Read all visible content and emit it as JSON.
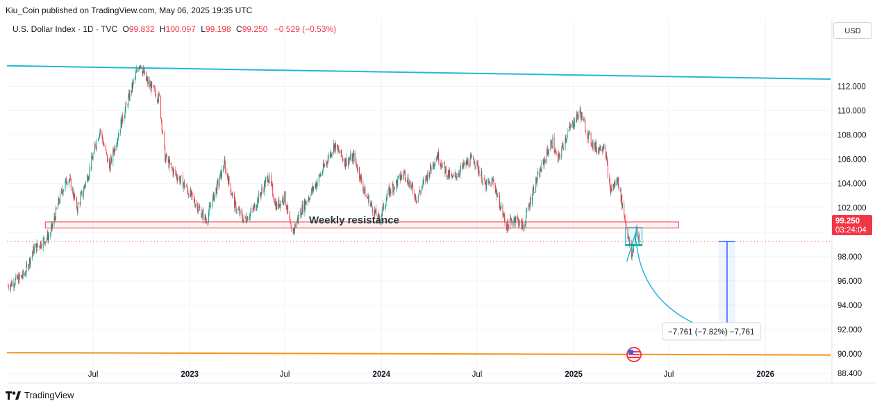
{
  "header": {
    "published": "Kiu_Coin published on TradingView.com, May 06, 2025 19:35 UTC",
    "currency_button": "USD"
  },
  "legend": {
    "symbol": "U.S. Dollar Index · 1D · TVC",
    "open_label": "O",
    "open": "99.832",
    "high_label": "H",
    "high": "100.097",
    "low_label": "L",
    "low": "99.198",
    "close_label": "C",
    "close": "99.250",
    "change": "−0.529 (−0.53%)"
  },
  "price_badge": {
    "price": "99.250",
    "countdown": "03:24:04",
    "color": "#f23645"
  },
  "annotations": {
    "resistance_label": "Weekly resistance",
    "measure_label": "−7.761 (−7.82%) −7,761"
  },
  "footer": {
    "brand": "TradingView"
  },
  "colors": {
    "up": "#089981",
    "down": "#f23645",
    "trendline": "#22b8d6",
    "support": "#f7931a",
    "resistance_box": "#f23645",
    "measure": "#2962ff"
  },
  "chart_data": {
    "type": "candlestick",
    "symbol": "U.S. Dollar Index",
    "interval": "1D",
    "y_ticks": [
      88.4,
      90,
      92,
      94,
      96,
      98,
      100,
      102,
      104,
      106,
      108,
      110,
      112
    ],
    "y_tick_labels": [
      "88.400",
      "90.000",
      "92.000",
      "94.000",
      "96.000",
      "98.000",
      "100.000",
      "102.000",
      "104.000",
      "106.000",
      "108.000",
      "110.000",
      "112.000"
    ],
    "x_ticks": [
      "2022-07-01",
      "2023-01-01",
      "2023-07-01",
      "2024-01-01",
      "2024-07-01",
      "2025-01-01",
      "2025-07-01",
      "2026-01-01"
    ],
    "x_tick_labels": [
      "Jul",
      "2023",
      "Jul",
      "2024",
      "Jul",
      "2025",
      "Jul",
      "2026"
    ],
    "x_range": [
      "2022-01-18",
      "2026-05-05"
    ],
    "y_range": [
      87.6,
      115.8
    ],
    "series_path": [
      [
        "2022-01-20",
        95.6
      ],
      [
        "2022-02-20",
        96.5
      ],
      [
        "2022-03-10",
        98.6
      ],
      [
        "2022-04-10",
        99.8
      ],
      [
        "2022-05-01",
        103.2
      ],
      [
        "2022-05-15",
        104.6
      ],
      [
        "2022-06-01",
        102.0
      ],
      [
        "2022-06-20",
        104.5
      ],
      [
        "2022-07-14",
        108.5
      ],
      [
        "2022-08-01",
        105.3
      ],
      [
        "2022-08-22",
        108.8
      ],
      [
        "2022-09-28",
        114.0
      ],
      [
        "2022-10-10",
        112.5
      ],
      [
        "2022-11-04",
        111.0
      ],
      [
        "2022-11-15",
        106.2
      ],
      [
        "2022-12-01",
        105.0
      ],
      [
        "2022-12-20",
        104.0
      ],
      [
        "2023-01-15",
        102.2
      ],
      [
        "2023-02-01",
        101.0
      ],
      [
        "2023-03-08",
        105.6
      ],
      [
        "2023-03-28",
        102.2
      ],
      [
        "2023-04-14",
        101.0
      ],
      [
        "2023-05-01",
        101.8
      ],
      [
        "2023-05-31",
        104.6
      ],
      [
        "2023-06-15",
        102.1
      ],
      [
        "2023-07-01",
        103.0
      ],
      [
        "2023-07-14",
        99.8
      ],
      [
        "2023-08-01",
        101.8
      ],
      [
        "2023-09-01",
        104.2
      ],
      [
        "2023-10-03",
        107.2
      ],
      [
        "2023-10-24",
        105.8
      ],
      [
        "2023-11-10",
        106.2
      ],
      [
        "2023-12-01",
        103.2
      ],
      [
        "2023-12-27",
        101.0
      ],
      [
        "2024-01-15",
        103.3
      ],
      [
        "2024-02-14",
        104.9
      ],
      [
        "2024-03-08",
        102.8
      ],
      [
        "2024-04-16",
        106.4
      ],
      [
        "2024-05-03",
        105.0
      ],
      [
        "2024-05-15",
        104.4
      ],
      [
        "2024-06-14",
        105.8
      ],
      [
        "2024-06-26",
        106.0
      ],
      [
        "2024-07-17",
        103.8
      ],
      [
        "2024-08-01",
        104.2
      ],
      [
        "2024-08-26",
        100.5
      ],
      [
        "2024-09-12",
        101.2
      ],
      [
        "2024-09-27",
        100.4
      ],
      [
        "2024-10-15",
        103.4
      ],
      [
        "2024-11-12",
        106.6
      ],
      [
        "2024-11-22",
        107.5
      ],
      [
        "2024-12-01",
        105.8
      ],
      [
        "2024-12-20",
        108.2
      ],
      [
        "2025-01-13",
        109.9
      ],
      [
        "2025-02-01",
        107.6
      ],
      [
        "2025-02-15",
        106.8
      ],
      [
        "2025-03-01",
        107.3
      ],
      [
        "2025-03-11",
        103.4
      ],
      [
        "2025-03-26",
        104.3
      ],
      [
        "2025-04-10",
        100.8
      ],
      [
        "2025-04-21",
        98.0
      ],
      [
        "2025-05-01",
        100.2
      ],
      [
        "2025-05-06",
        99.25
      ]
    ],
    "lines": [
      {
        "kind": "trendline",
        "from": [
          "2022-01-18",
          113.7
        ],
        "to": [
          "2026-05-05",
          112.6
        ]
      },
      {
        "kind": "support",
        "from": [
          "2022-01-18",
          90.1
        ],
        "to": [
          "2026-05-05",
          89.9
        ]
      }
    ],
    "zones": [
      {
        "kind": "resistance",
        "from": "2022-04-01",
        "to": "2025-07-20",
        "low": 100.35,
        "high": 100.85
      }
    ],
    "current_price_line": 99.25,
    "projection": {
      "from": [
        "2025-04-30",
        99.25
      ],
      "to": [
        "2025-10-25",
        91.5
      ]
    },
    "measure": {
      "date": "2025-10-20",
      "from": 99.25,
      "to": 91.49,
      "change": -7.761,
      "change_pct": -7.82
    }
  }
}
